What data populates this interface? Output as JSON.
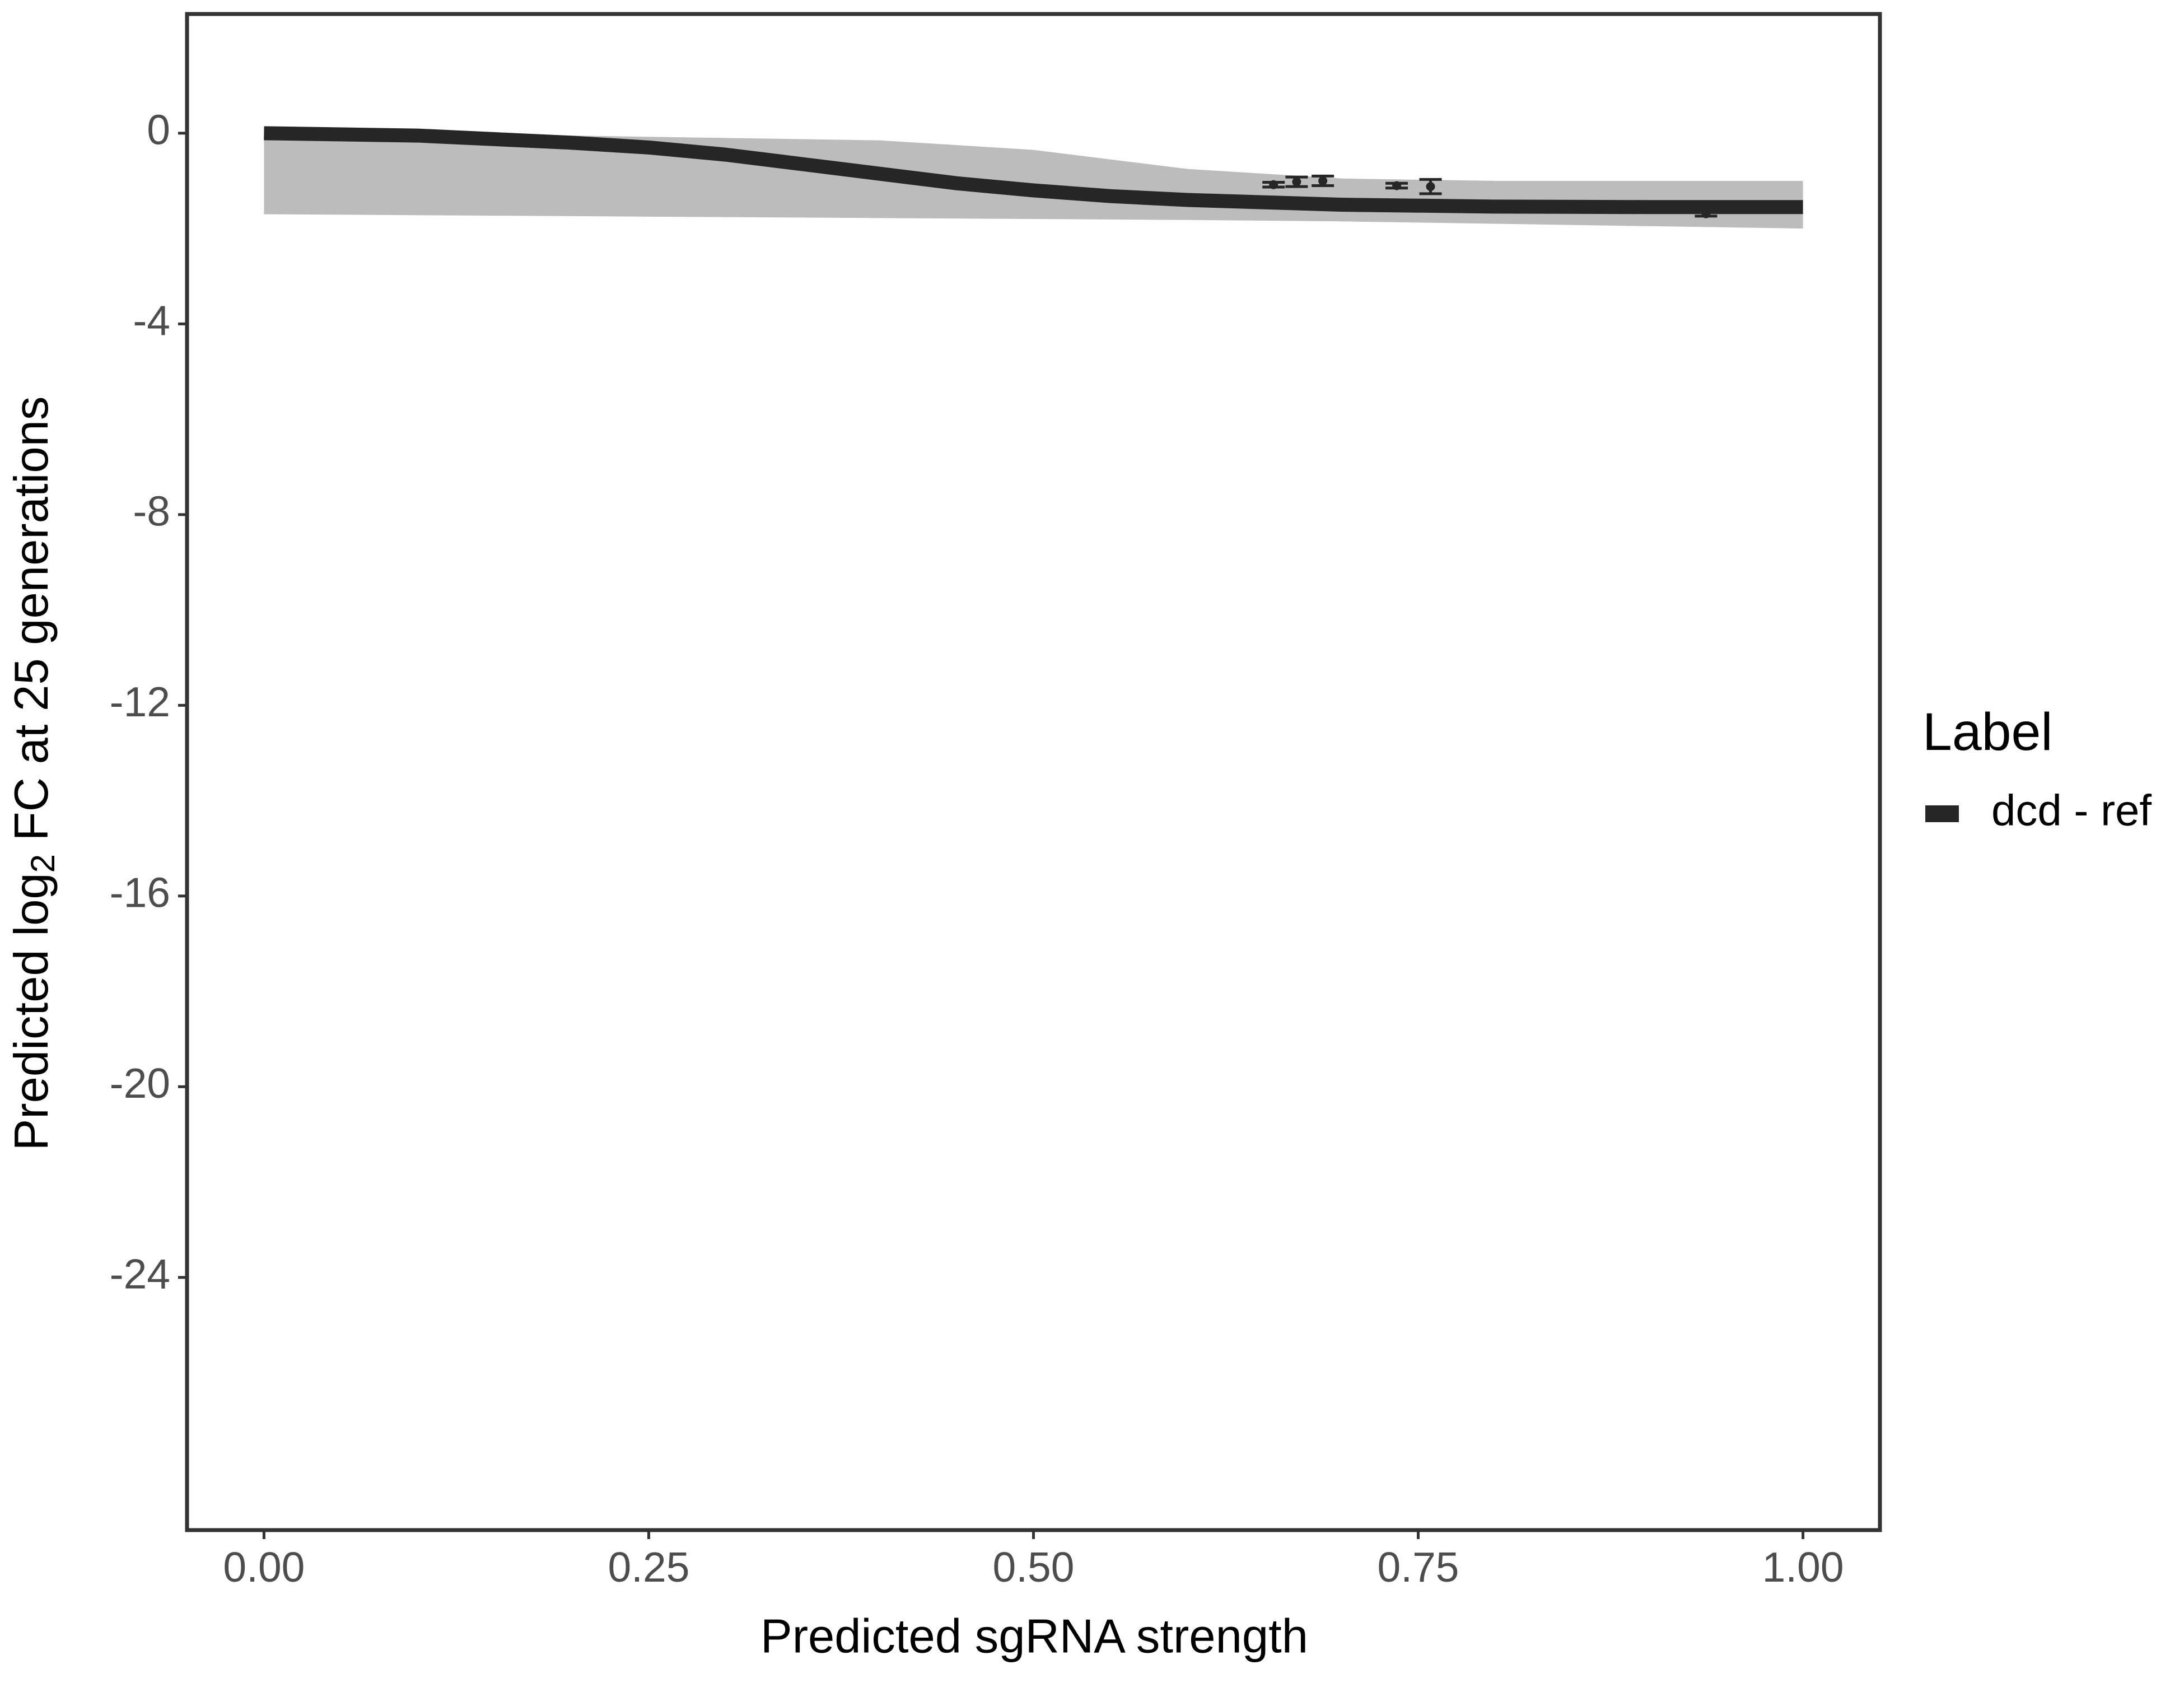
{
  "chart_data": {
    "type": "line",
    "xlabel": "Predicted sgRNA strength",
    "ylabel_parts": [
      "Predicted  log",
      "2",
      " FC at 25 generations"
    ],
    "xlim": [
      -0.05,
      1.05
    ],
    "ylim": [
      -29.3,
      2.5
    ],
    "xticks": [
      {
        "value": 0,
        "label": "0.00"
      },
      {
        "value": 0.25,
        "label": "0.25"
      },
      {
        "value": 0.5,
        "label": "0.50"
      },
      {
        "value": 0.75,
        "label": "0.75"
      },
      {
        "value": 1,
        "label": "1.00"
      }
    ],
    "yticks": [
      0,
      -4,
      -8,
      -12,
      -16,
      -20,
      -24
    ],
    "legend_title": "Label",
    "band": {
      "color": "#a6a6a6",
      "x": [
        0,
        0.1,
        0.2,
        0.3,
        0.4,
        0.5,
        0.6,
        0.7,
        0.8,
        0.9,
        1.0
      ],
      "upper": [
        0,
        0,
        -0.05,
        -0.1,
        -0.15,
        -0.35,
        -0.75,
        -0.95,
        -1.0,
        -1.0,
        -1.0
      ],
      "lower": [
        -1.7,
        -1.72,
        -1.74,
        -1.76,
        -1.78,
        -1.8,
        -1.82,
        -1.85,
        -1.9,
        -1.95,
        -2.0
      ]
    },
    "series": [
      {
        "name": "dcd - ref",
        "color": "#262626",
        "x": [
          0,
          0.1,
          0.2,
          0.25,
          0.3,
          0.35,
          0.4,
          0.45,
          0.5,
          0.55,
          0.6,
          0.65,
          0.7,
          0.75,
          0.8,
          0.9,
          1.0
        ],
        "values": [
          0,
          -0.05,
          -0.2,
          -0.3,
          -0.45,
          -0.65,
          -0.85,
          -1.05,
          -1.2,
          -1.32,
          -1.4,
          -1.45,
          -1.5,
          -1.52,
          -1.54,
          -1.55,
          -1.55
        ]
      }
    ],
    "points": {
      "color": "#262626",
      "x": [
        0.656,
        0.671,
        0.688,
        0.736,
        0.758,
        0.937
      ],
      "values": [
        -1.08,
        -1.02,
        -1.0,
        -1.1,
        -1.12,
        -1.69
      ],
      "errors": [
        0.05,
        0.1,
        0.1,
        0.05,
        0.15,
        0.05
      ]
    }
  }
}
